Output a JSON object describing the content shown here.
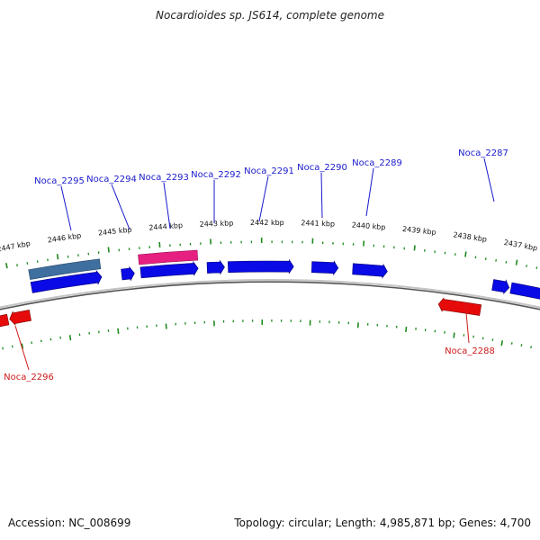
{
  "title": "Nocardioides sp. JS614, complete genome",
  "footer": {
    "accession": "Accession: NC_008699",
    "topology": "Topology: circular; Length: 4,985,871 bp; Genes: 4,700"
  },
  "colors": {
    "background": "#ffffff",
    "backbone": "#8a8a8a",
    "tick": "#1e8a1e",
    "forward_gene": "#0a0ae6",
    "reverse_gene": "#e60a0a",
    "forward_label": "#1a1acc",
    "reverse_label": "#cc1a1a",
    "rna_feature": "#3f6f9f",
    "misc_feature": "#e62080"
  },
  "kbp_ticks": [
    {
      "label": "2447 kbp"
    },
    {
      "label": "2446 kbp"
    },
    {
      "label": "2445 kbp"
    },
    {
      "label": "2444 kbp"
    },
    {
      "label": "2443 kbp"
    },
    {
      "label": "2442 kbp"
    },
    {
      "label": "2441 kbp"
    },
    {
      "label": "2440 kbp"
    },
    {
      "label": "2439 kbp"
    },
    {
      "label": "2438 kbp"
    },
    {
      "label": "2437 kbp"
    }
  ],
  "genes_forward": [
    {
      "label": "Noca_2295"
    },
    {
      "label": "Noca_2294"
    },
    {
      "label": "Noca_2293"
    },
    {
      "label": "Noca_2292"
    },
    {
      "label": "Noca_2291"
    },
    {
      "label": "Noca_2290"
    },
    {
      "label": "Noca_2289"
    },
    {
      "label": "Noca_2287"
    }
  ],
  "genes_reverse": [
    {
      "label": "Noca_2296"
    },
    {
      "label": "Noca_2288"
    }
  ]
}
